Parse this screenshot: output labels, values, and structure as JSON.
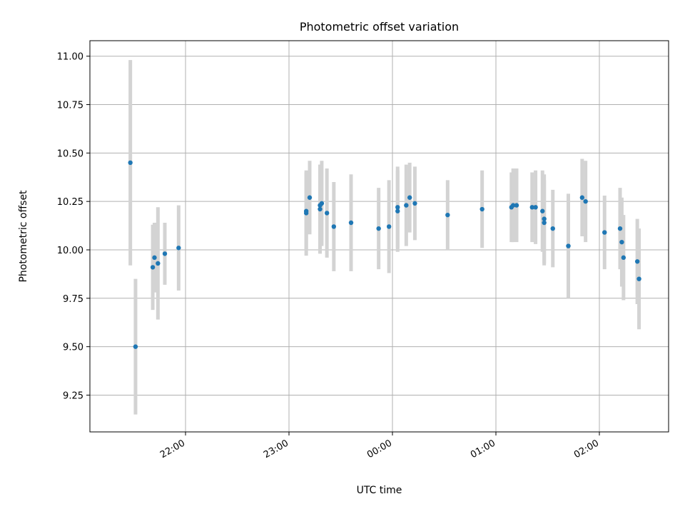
{
  "chart_data": {
    "type": "scatter",
    "title": "Photometric offset variation",
    "xlabel": "UTC time",
    "ylabel": "Photometric offset",
    "x_axis": {
      "ticks": [
        "22:00",
        "23:00",
        "00:00",
        "01:00",
        "02:00"
      ],
      "tick_values": [
        "22:00",
        "23:00",
        "00:00",
        "01:00",
        "02:00"
      ],
      "range": [
        "21:04",
        "02:44"
      ]
    },
    "y_axis": {
      "ticks": [
        "9.25",
        "9.50",
        "9.75",
        "10.00",
        "10.25",
        "10.50",
        "10.75",
        "11.00"
      ],
      "range": [
        9.06,
        11.08
      ]
    },
    "grid": true,
    "colors": {
      "points": "#1f77b4",
      "error_bars": "#d3d3d3",
      "grid": "#b0b0b0"
    },
    "series": [
      {
        "x": [
          "21:28",
          "21:31",
          "21:41",
          "21:42",
          "21:44",
          "21:48",
          "21:56",
          "23:10",
          "23:10",
          "23:12",
          "23:18",
          "23:18",
          "23:19",
          "23:22",
          "23:26",
          "23:36",
          "23:52",
          "23:58",
          "00:03",
          "00:03",
          "00:08",
          "00:10",
          "00:13",
          "00:32",
          "00:52",
          "01:09",
          "01:10",
          "01:12",
          "01:21",
          "01:23",
          "01:27",
          "01:28",
          "01:28",
          "01:33",
          "01:42",
          "01:50",
          "01:52",
          "02:03",
          "02:12",
          "02:13",
          "02:14",
          "02:22",
          "02:23"
        ],
        "y": [
          10.45,
          9.5,
          9.91,
          9.96,
          9.93,
          9.98,
          10.01,
          10.19,
          10.2,
          10.27,
          10.21,
          10.23,
          10.24,
          10.19,
          10.12,
          10.14,
          10.11,
          10.12,
          10.2,
          10.22,
          10.23,
          10.27,
          10.24,
          10.18,
          10.21,
          10.22,
          10.23,
          10.23,
          10.22,
          10.22,
          10.2,
          10.16,
          10.14,
          10.11,
          10.02,
          10.27,
          10.25,
          10.09,
          10.11,
          10.04,
          9.96,
          9.94,
          9.85
        ],
        "yerr": [
          0.53,
          0.35,
          0.22,
          0.18,
          0.29,
          0.16,
          0.22,
          0.22,
          0.2,
          0.19,
          0.23,
          0.21,
          0.22,
          0.23,
          0.23,
          0.25,
          0.21,
          0.24,
          0.21,
          0.21,
          0.21,
          0.18,
          0.19,
          0.18,
          0.2,
          0.18,
          0.19,
          0.19,
          0.18,
          0.19,
          0.21,
          0.23,
          0.22,
          0.2,
          0.27,
          0.2,
          0.21,
          0.19,
          0.21,
          0.23,
          0.22,
          0.22,
          0.26
        ]
      }
    ]
  }
}
